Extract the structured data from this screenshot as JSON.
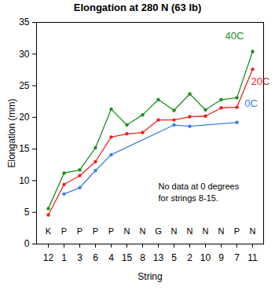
{
  "chart_data": {
    "type": "line",
    "title": "Elongation at 280 N (63 lb)",
    "x_label": "String",
    "y_label": "Elongation (mm)",
    "categories": [
      "12",
      "1",
      "3",
      "6",
      "4",
      "15",
      "8",
      "13",
      "5",
      "2",
      "10",
      "9",
      "7",
      "11"
    ],
    "string_types": [
      "K",
      "P",
      "P",
      "P",
      "P",
      "N",
      "N",
      "G",
      "N",
      "N",
      "N",
      "N",
      "P",
      "N"
    ],
    "annotation": "No data at 0 degrees\nfor strings 8-15.",
    "series": [
      {
        "name": "40C",
        "color": "#1f8f1f",
        "values": [
          5.6,
          11.2,
          11.7,
          15.2,
          21.3,
          18.8,
          20.4,
          22.8,
          21.1,
          23.7,
          21.2,
          22.8,
          23.1,
          30.4
        ]
      },
      {
        "name": "20C",
        "color": "#e8251f",
        "values": [
          4.6,
          9.4,
          10.8,
          13.0,
          16.9,
          17.4,
          17.6,
          19.6,
          19.6,
          20.1,
          20.2,
          21.5,
          21.6,
          27.6
        ]
      },
      {
        "name": "0C",
        "color": "#3b7ee0",
        "values": [
          null,
          7.9,
          8.9,
          11.6,
          14.1,
          null,
          null,
          null,
          18.8,
          18.6,
          null,
          null,
          19.2,
          null
        ]
      }
    ],
    "ylim": [
      0,
      35
    ],
    "yticks": [
      0,
      5,
      10,
      15,
      20,
      25,
      30,
      35
    ],
    "marker": "circle",
    "grid": false
  }
}
